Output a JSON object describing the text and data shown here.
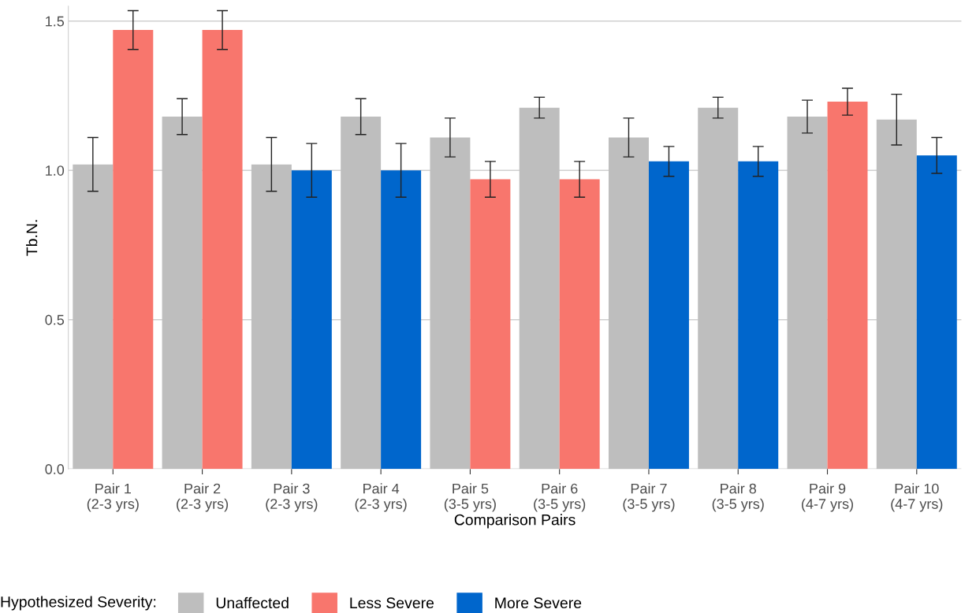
{
  "chart_data": {
    "type": "bar",
    "xlabel": "Comparison Pairs",
    "ylabel": "Tb.N.",
    "legend_title": "Hypothesized Severity:",
    "categories": [
      "Pair 1\n(2-3 yrs)",
      "Pair 2\n(2-3 yrs)",
      "Pair 3\n(2-3 yrs)",
      "Pair 4\n(2-3 yrs)",
      "Pair 5\n(3-5 yrs)",
      "Pair 6\n(3-5 yrs)",
      "Pair 7\n(3-5 yrs)",
      "Pair 8\n(3-5 yrs)",
      "Pair 9\n(4-7 yrs)",
      "Pair 10\n(4-7 yrs)"
    ],
    "series": [
      {
        "name": "Unaffected",
        "color": "#bebebe",
        "values": [
          1.02,
          1.18,
          1.02,
          1.18,
          1.11,
          1.21,
          1.11,
          1.21,
          1.18,
          1.17
        ],
        "errors": [
          0.09,
          0.06,
          0.09,
          0.06,
          0.065,
          0.035,
          0.065,
          0.035,
          0.055,
          0.085
        ]
      },
      {
        "name": "Less Severe",
        "color": "#f8766d",
        "values": [
          1.47,
          1.47,
          null,
          null,
          0.97,
          0.97,
          null,
          null,
          1.23,
          null
        ],
        "errors": [
          0.065,
          0.065,
          null,
          null,
          0.06,
          0.06,
          null,
          null,
          0.045,
          null
        ]
      },
      {
        "name": "More Severe",
        "color": "#0066cc",
        "values": [
          null,
          null,
          1.0,
          1.0,
          null,
          null,
          1.03,
          1.03,
          null,
          1.05
        ],
        "errors": [
          null,
          null,
          0.09,
          0.09,
          null,
          null,
          0.05,
          0.05,
          null,
          0.06
        ]
      }
    ],
    "ylim": [
      0,
      1.55
    ],
    "yticks": [
      {
        "value": 0,
        "label": "0.0"
      },
      {
        "value": 0.5,
        "label": "0.5"
      },
      {
        "value": 1.0,
        "label": "1.0"
      },
      {
        "value": 1.5,
        "label": "1.5"
      }
    ],
    "grid": "y",
    "legend": "bottom"
  }
}
